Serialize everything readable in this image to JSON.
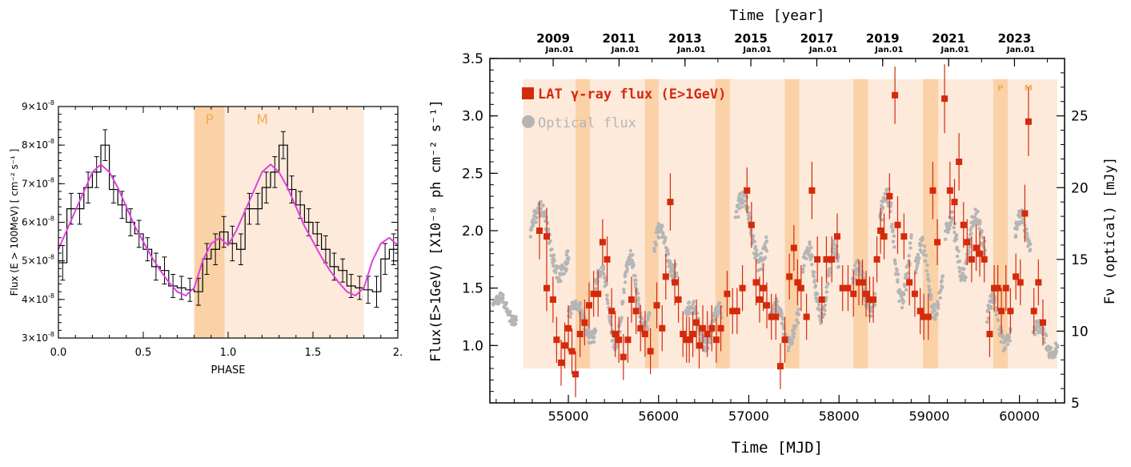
{
  "chart_data": [
    {
      "type": "line",
      "xlabel": "PHASE",
      "ylabel": "Flux (E > 100MeV) [ cm⁻² s⁻¹ ]",
      "xlim": [
        0,
        2.0
      ],
      "ylim": [
        3e-08,
        9e-08
      ],
      "x_ticks": [
        "0.0",
        "0.5",
        "1.0",
        "1.5",
        "2."
      ],
      "y_ticks": [
        {
          "base": "3×10",
          "exp": "-8",
          "value": 3e-08
        },
        {
          "base": "4×10",
          "exp": "-8",
          "value": 4e-08
        },
        {
          "base": "5×10",
          "exp": "-8",
          "value": 5e-08
        },
        {
          "base": "6×10",
          "exp": "-8",
          "value": 6e-08
        },
        {
          "base": "7×10",
          "exp": "-8",
          "value": 7e-08
        },
        {
          "base": "8×10",
          "exp": "-8",
          "value": 8e-08
        },
        {
          "base": "9×10",
          "exp": "-8",
          "value": 9e-08
        }
      ],
      "bands": [
        {
          "label": "P",
          "from": 0.8,
          "to": 0.98,
          "color": "#fbd2a8"
        },
        {
          "label": "M",
          "from": 0.98,
          "to": 1.8,
          "color": "#fdeadb"
        }
      ],
      "band_label_color": "#f0ad4e",
      "histogram": {
        "bin_width": 0.05,
        "x_start": 0.0,
        "values": [
          4.95,
          6.35,
          6.35,
          6.9,
          7.3,
          8.0,
          6.85,
          6.45,
          6.0,
          5.7,
          5.3,
          4.85,
          4.75,
          4.35,
          4.3,
          4.25,
          4.2,
          5.05,
          5.3,
          5.75,
          5.45,
          5.3,
          6.35,
          6.35,
          6.9,
          7.3,
          8.0,
          6.85,
          6.45,
          6.0,
          5.7,
          5.3,
          4.85,
          4.75,
          4.35,
          4.3,
          4.25,
          4.2,
          5.05,
          5.3
        ],
        "errors": [
          0.45,
          0.4,
          0.4,
          0.4,
          0.4,
          0.4,
          0.35,
          0.35,
          0.35,
          0.35,
          0.3,
          0.35,
          0.35,
          0.3,
          0.3,
          0.3,
          0.35,
          0.4,
          0.4,
          0.4,
          0.45,
          0.4,
          0.4,
          0.4,
          0.4,
          0.4,
          0.35,
          0.35,
          0.35,
          0.35,
          0.3,
          0.35,
          0.35,
          0.3,
          0.3,
          0.3,
          0.35,
          0.4,
          0.4,
          0.4
        ],
        "color": "#000000",
        "unit_scale": 1e-08
      },
      "fit_curve": {
        "x": [
          0.0,
          0.05,
          0.1,
          0.15,
          0.2,
          0.25,
          0.3,
          0.35,
          0.4,
          0.45,
          0.5,
          0.55,
          0.6,
          0.65,
          0.7,
          0.75,
          0.8,
          0.85,
          0.9,
          0.95,
          1.0,
          1.05,
          1.1,
          1.15,
          1.2,
          1.25,
          1.3,
          1.35,
          1.4,
          1.45,
          1.5,
          1.55,
          1.6,
          1.65,
          1.7,
          1.75,
          1.8,
          1.85,
          1.9,
          1.95,
          2.0
        ],
        "y": [
          5.3,
          5.8,
          6.3,
          6.8,
          7.3,
          7.5,
          7.3,
          6.9,
          6.4,
          5.9,
          5.5,
          5.1,
          4.75,
          4.45,
          4.2,
          4.1,
          4.3,
          5.0,
          5.45,
          5.6,
          5.4,
          5.8,
          6.3,
          6.8,
          7.3,
          7.5,
          7.3,
          6.9,
          6.4,
          5.9,
          5.5,
          5.1,
          4.75,
          4.45,
          4.2,
          4.1,
          4.3,
          5.0,
          5.45,
          5.6,
          5.4
        ],
        "color": "#e040e0",
        "unit_scale": 1e-08
      }
    },
    {
      "type": "scatter",
      "top_axis_title": "Time [year]",
      "xlabel": "Time  [MJD]",
      "ylabel_left": "Flux(E>1GeV) [X10⁻⁸ ph cm⁻² s⁻¹]",
      "ylabel_right": "Fν (optical)  [mJy]",
      "xlim": [
        54130,
        60500
      ],
      "ylim_left": [
        0.5,
        3.5
      ],
      "ylim_right": [
        5,
        29
      ],
      "x_ticks": [
        55000,
        56000,
        57000,
        58000,
        59000,
        60000
      ],
      "y_ticks_left": [
        1.0,
        1.5,
        2.0,
        2.5,
        3.0,
        3.5
      ],
      "y_ticks_right": [
        10,
        15,
        20,
        25
      ],
      "year_ticks": [
        {
          "year": "2009",
          "sub": "Jan.01",
          "mjd": 54832
        },
        {
          "year": "2011",
          "sub": "Jan.01",
          "mjd": 55562
        },
        {
          "year": "2013",
          "sub": "Jan.01",
          "mjd": 56293
        },
        {
          "year": "2015",
          "sub": "Jan.01",
          "mjd": 57023
        },
        {
          "year": "2017",
          "sub": "Jan.01",
          "mjd": 57754
        },
        {
          "year": "2019",
          "sub": "Jan.01",
          "mjd": 58484
        },
        {
          "year": "2021",
          "sub": "Jan.01",
          "mjd": 59215
        },
        {
          "year": "2023",
          "sub": "Jan.01",
          "mjd": 59945
        }
      ],
      "background_band": {
        "from_mjd": 54500,
        "to_mjd": 60420,
        "y_from": 0.8,
        "y_to": 3.32,
        "color": "#fdeadb"
      },
      "p_bands": {
        "color": "#fbd2a8",
        "ranges": [
          [
            55080,
            55240
          ],
          [
            55850,
            56000
          ],
          [
            56630,
            56790
          ],
          [
            57400,
            57560
          ],
          [
            58160,
            58320
          ],
          [
            58930,
            59100
          ],
          [
            59710,
            59870
          ]
        ]
      },
      "band_labels": [
        {
          "text": "P",
          "mjd": 59790
        },
        {
          "text": "M",
          "mjd": 60100
        }
      ],
      "band_label_color": "#f0ad4e",
      "legend": {
        "position": "top-left",
        "entries": [
          {
            "label": "LAT γ-ray flux (E>1GeV)",
            "color": "#d42a0c",
            "marker": "square"
          },
          {
            "label": "Optical flux",
            "color": "#b5b5b5",
            "marker": "circle"
          }
        ]
      },
      "gamma_series": {
        "name": "LAT γ-ray flux (E>1GeV)",
        "color": "#d42a0c",
        "points": [
          [
            54680,
            2.0,
            0.25
          ],
          [
            54760,
            1.95,
            0.25
          ],
          [
            54760,
            1.5,
            0.2
          ],
          [
            54830,
            1.4,
            0.2
          ],
          [
            54870,
            1.05,
            0.2
          ],
          [
            54920,
            0.85,
            0.2
          ],
          [
            54960,
            1.0,
            0.2
          ],
          [
            55000,
            1.15,
            0.2
          ],
          [
            55040,
            0.95,
            0.2
          ],
          [
            55080,
            0.75,
            0.2
          ],
          [
            55130,
            1.1,
            0.2
          ],
          [
            55180,
            1.2,
            0.2
          ],
          [
            55230,
            1.35,
            0.2
          ],
          [
            55280,
            1.45,
            0.2
          ],
          [
            55330,
            1.45,
            0.2
          ],
          [
            55380,
            1.9,
            0.2
          ],
          [
            55430,
            1.75,
            0.2
          ],
          [
            55480,
            1.3,
            0.2
          ],
          [
            55520,
            1.1,
            0.2
          ],
          [
            55560,
            1.05,
            0.2
          ],
          [
            55610,
            0.9,
            0.2
          ],
          [
            55660,
            1.05,
            0.2
          ],
          [
            55700,
            1.4,
            0.2
          ],
          [
            55750,
            1.3,
            0.2
          ],
          [
            55800,
            1.15,
            0.2
          ],
          [
            55850,
            1.1,
            0.2
          ],
          [
            55910,
            0.95,
            0.2
          ],
          [
            55980,
            1.35,
            0.2
          ],
          [
            56040,
            1.15,
            0.2
          ],
          [
            56080,
            1.6,
            0.2
          ],
          [
            56130,
            2.25,
            0.25
          ],
          [
            56180,
            1.55,
            0.2
          ],
          [
            56220,
            1.4,
            0.2
          ],
          [
            56270,
            1.1,
            0.2
          ],
          [
            56310,
            1.05,
            0.2
          ],
          [
            56340,
            1.05,
            0.2
          ],
          [
            56380,
            1.1,
            0.2
          ],
          [
            56420,
            1.2,
            0.2
          ],
          [
            56450,
            1.0,
            0.2
          ],
          [
            56490,
            1.15,
            0.2
          ],
          [
            56540,
            1.1,
            0.2
          ],
          [
            56590,
            1.15,
            0.2
          ],
          [
            56640,
            1.05,
            0.2
          ],
          [
            56690,
            1.15,
            0.2
          ],
          [
            56760,
            1.45,
            0.2
          ],
          [
            56820,
            1.3,
            0.2
          ],
          [
            56870,
            1.3,
            0.2
          ],
          [
            56930,
            1.5,
            0.2
          ],
          [
            56980,
            2.35,
            0.2
          ],
          [
            57030,
            2.05,
            0.2
          ],
          [
            57080,
            1.55,
            0.2
          ],
          [
            57120,
            1.4,
            0.2
          ],
          [
            57160,
            1.5,
            0.2
          ],
          [
            57200,
            1.35,
            0.2
          ],
          [
            57250,
            1.25,
            0.2
          ],
          [
            57300,
            1.25,
            0.2
          ],
          [
            57350,
            0.82,
            0.2
          ],
          [
            57400,
            1.05,
            0.2
          ],
          [
            57450,
            1.6,
            0.2
          ],
          [
            57500,
            1.85,
            0.2
          ],
          [
            57540,
            1.55,
            0.2
          ],
          [
            57580,
            1.5,
            0.2
          ],
          [
            57640,
            1.25,
            0.2
          ],
          [
            57700,
            2.35,
            0.25
          ],
          [
            57760,
            1.75,
            0.2
          ],
          [
            57810,
            1.4,
            0.2
          ],
          [
            57860,
            1.75,
            0.2
          ],
          [
            57920,
            1.75,
            0.2
          ],
          [
            57980,
            1.95,
            0.2
          ],
          [
            58040,
            1.5,
            0.2
          ],
          [
            58100,
            1.5,
            0.2
          ],
          [
            58160,
            1.45,
            0.2
          ],
          [
            58220,
            1.55,
            0.2
          ],
          [
            58260,
            1.55,
            0.2
          ],
          [
            58300,
            1.45,
            0.2
          ],
          [
            58340,
            1.4,
            0.2
          ],
          [
            58380,
            1.4,
            0.2
          ],
          [
            58420,
            1.75,
            0.2
          ],
          [
            58460,
            2.0,
            0.2
          ],
          [
            58500,
            1.95,
            0.2
          ],
          [
            58560,
            2.3,
            0.2
          ],
          [
            58620,
            3.18,
            0.25
          ],
          [
            58650,
            2.05,
            0.25
          ],
          [
            58720,
            1.95,
            0.2
          ],
          [
            58780,
            1.55,
            0.2
          ],
          [
            58840,
            1.45,
            0.2
          ],
          [
            58900,
            1.3,
            0.2
          ],
          [
            58940,
            1.25,
            0.2
          ],
          [
            58990,
            1.25,
            0.2
          ],
          [
            59040,
            2.35,
            0.25
          ],
          [
            59090,
            1.9,
            0.2
          ],
          [
            59170,
            3.15,
            0.3
          ],
          [
            59230,
            2.35,
            0.25
          ],
          [
            59280,
            2.25,
            0.2
          ],
          [
            59330,
            2.6,
            0.25
          ],
          [
            59380,
            2.05,
            0.2
          ],
          [
            59420,
            1.9,
            0.2
          ],
          [
            59470,
            1.75,
            0.2
          ],
          [
            59520,
            1.85,
            0.2
          ],
          [
            59560,
            1.8,
            0.2
          ],
          [
            59610,
            1.75,
            0.2
          ],
          [
            59670,
            1.1,
            0.2
          ],
          [
            59720,
            1.5,
            0.2
          ],
          [
            59760,
            1.5,
            0.2
          ],
          [
            59800,
            1.3,
            0.2
          ],
          [
            59850,
            1.5,
            0.2
          ],
          [
            59900,
            1.3,
            0.2
          ],
          [
            59960,
            1.6,
            0.2
          ],
          [
            60010,
            1.55,
            0.2
          ],
          [
            60060,
            2.15,
            0.25
          ],
          [
            60100,
            2.95,
            0.3
          ],
          [
            60160,
            1.3,
            0.2
          ],
          [
            60210,
            1.55,
            0.2
          ],
          [
            60260,
            1.2,
            0.2
          ]
        ]
      },
      "optical_series": {
        "name": "Optical flux",
        "color": "#b5b5b5",
        "segments": [
          {
            "from": 54160,
            "to": 54420,
            "baseline": 1.28,
            "amp": 0.15,
            "scatter": 0.05,
            "cycles": 0.6
          },
          {
            "from": 54580,
            "to": 55000,
            "baseline": 1.9,
            "amp": 0.35,
            "scatter": 0.07,
            "cycles": 0.8
          },
          {
            "from": 55000,
            "to": 55300,
            "baseline": 1.2,
            "amp": 0.2,
            "scatter": 0.06,
            "cycles": 0.7
          },
          {
            "from": 55300,
            "to": 55900,
            "baseline": 1.4,
            "amp": 0.4,
            "scatter": 0.06,
            "cycles": 1.8
          },
          {
            "from": 55950,
            "to": 56200,
            "baseline": 1.8,
            "amp": 0.25,
            "scatter": 0.07,
            "cycles": 0.7
          },
          {
            "from": 56300,
            "to": 56700,
            "baseline": 1.2,
            "amp": 0.2,
            "scatter": 0.06,
            "cycles": 1.2
          },
          {
            "from": 56850,
            "to": 57200,
            "baseline": 2.0,
            "amp": 0.35,
            "scatter": 0.08,
            "cycles": 0.8
          },
          {
            "from": 57250,
            "to": 57550,
            "baseline": 1.2,
            "amp": 0.2,
            "scatter": 0.06,
            "cycles": 1.0
          },
          {
            "from": 57600,
            "to": 58000,
            "baseline": 1.6,
            "amp": 0.35,
            "scatter": 0.07,
            "cycles": 1.3
          },
          {
            "from": 58150,
            "to": 58400,
            "baseline": 1.5,
            "amp": 0.25,
            "scatter": 0.07,
            "cycles": 0.8
          },
          {
            "from": 58450,
            "to": 58800,
            "baseline": 1.9,
            "amp": 0.55,
            "scatter": 0.09,
            "cycles": 0.9
          },
          {
            "from": 58850,
            "to": 59150,
            "baseline": 1.6,
            "amp": 0.35,
            "scatter": 0.07,
            "cycles": 0.9
          },
          {
            "from": 59180,
            "to": 59620,
            "baseline": 1.9,
            "amp": 0.3,
            "scatter": 0.08,
            "cycles": 1.5
          },
          {
            "from": 59640,
            "to": 59900,
            "baseline": 1.2,
            "amp": 0.25,
            "scatter": 0.07,
            "cycles": 0.8
          },
          {
            "from": 59950,
            "to": 60120,
            "baseline": 1.9,
            "amp": 0.25,
            "scatter": 0.07,
            "cycles": 0.5
          },
          {
            "from": 60150,
            "to": 60420,
            "baseline": 1.05,
            "amp": 0.15,
            "scatter": 0.06,
            "cycles": 0.8
          }
        ]
      }
    }
  ]
}
